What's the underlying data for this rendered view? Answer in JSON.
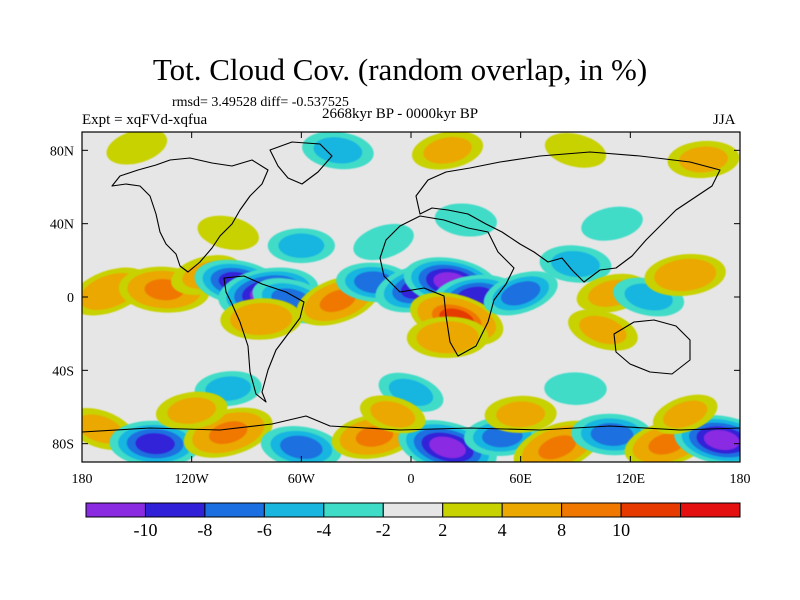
{
  "figure": {
    "title": "Tot. Cloud Cov. (random overlap, in %)",
    "stats_line": "rmsd= 3.49528 diff= -0.537525",
    "period": "2668kyr BP - 0000kyr BP",
    "experiment": "Expt = xqFVd-xqfua",
    "season": "JJA"
  },
  "axes": {
    "lon_ticks": [
      "180",
      "120W",
      "60W",
      "0",
      "60E",
      "120E",
      "180"
    ],
    "lon_values": [
      -180,
      -120,
      -60,
      0,
      60,
      120,
      180
    ],
    "lat_ticks": [
      "80N",
      "40N",
      "0",
      "40S",
      "80S"
    ],
    "lat_values": [
      80,
      40,
      0,
      -40,
      -80
    ],
    "lon_range": [
      -180,
      180
    ],
    "lat_range": [
      -90,
      90
    ]
  },
  "colorbar": {
    "labels": [
      "-10",
      "-8",
      "-6",
      "-4",
      "-2",
      "2",
      "4",
      "8",
      "10"
    ],
    "colors": [
      "#8a2be2",
      "#3020d8",
      "#1b6fe0",
      "#19b6e0",
      "#3fdcc8",
      "#e6e6e6",
      "#c8d200",
      "#eaa800",
      "#f07800",
      "#e63a00",
      "#e41010"
    ]
  },
  "legend_scale": {
    "bins": [
      -12,
      -10,
      -8,
      -6,
      -4,
      -2,
      2,
      4,
      8,
      10,
      12
    ]
  },
  "anomaly_fields": [
    {
      "lon": -165,
      "lat": 3,
      "value": 7
    },
    {
      "lon": -135,
      "lat": 4,
      "value": 9
    },
    {
      "lon": -112,
      "lat": 12,
      "value": 5
    },
    {
      "lon": -95,
      "lat": 8,
      "value": -8
    },
    {
      "lon": -78,
      "lat": 2,
      "value": -11
    },
    {
      "lon": -65,
      "lat": -2,
      "value": -7
    },
    {
      "lon": -82,
      "lat": -12,
      "value": 7
    },
    {
      "lon": -40,
      "lat": -2,
      "value": 8
    },
    {
      "lon": -20,
      "lat": 8,
      "value": -6
    },
    {
      "lon": 5,
      "lat": 5,
      "value": -9
    },
    {
      "lon": 22,
      "lat": 8,
      "value": -10
    },
    {
      "lon": 35,
      "lat": 0,
      "value": -8
    },
    {
      "lon": 25,
      "lat": -12,
      "value": 10
    },
    {
      "lon": 20,
      "lat": -22,
      "value": 7
    },
    {
      "lon": 60,
      "lat": 2,
      "value": -6
    },
    {
      "lon": 90,
      "lat": 18,
      "value": -5
    },
    {
      "lon": 110,
      "lat": 2,
      "value": 5
    },
    {
      "lon": 130,
      "lat": 0,
      "value": -5
    },
    {
      "lon": 150,
      "lat": 12,
      "value": 7
    },
    {
      "lon": 105,
      "lat": -18,
      "value": 5
    },
    {
      "lon": -60,
      "lat": 28,
      "value": -4
    },
    {
      "lon": -15,
      "lat": 30,
      "value": -3
    },
    {
      "lon": 30,
      "lat": 42,
      "value": -3
    },
    {
      "lon": 110,
      "lat": 40,
      "value": -3
    },
    {
      "lon": -100,
      "lat": 35,
      "value": 3
    },
    {
      "lon": -100,
      "lat": -50,
      "value": -4
    },
    {
      "lon": 0,
      "lat": -52,
      "value": -4
    },
    {
      "lon": 90,
      "lat": -50,
      "value": -3
    },
    {
      "lon": -150,
      "lat": 82,
      "value": 3
    },
    {
      "lon": -40,
      "lat": 80,
      "value": -5
    },
    {
      "lon": 20,
      "lat": 80,
      "value": 5
    },
    {
      "lon": 90,
      "lat": 80,
      "value": 3
    },
    {
      "lon": 160,
      "lat": 75,
      "value": 5
    },
    {
      "lon": -170,
      "lat": -72,
      "value": 5
    },
    {
      "lon": -140,
      "lat": -80,
      "value": -9
    },
    {
      "lon": -100,
      "lat": -74,
      "value": 9
    },
    {
      "lon": -60,
      "lat": -82,
      "value": -7
    },
    {
      "lon": -20,
      "lat": -76,
      "value": 8
    },
    {
      "lon": 20,
      "lat": -82,
      "value": -11
    },
    {
      "lon": 50,
      "lat": -76,
      "value": -6
    },
    {
      "lon": 80,
      "lat": -82,
      "value": 9
    },
    {
      "lon": 110,
      "lat": -75,
      "value": -7
    },
    {
      "lon": 140,
      "lat": -80,
      "value": 8
    },
    {
      "lon": 170,
      "lat": -78,
      "value": -10
    },
    {
      "lon": -120,
      "lat": -62,
      "value": 5
    },
    {
      "lon": -10,
      "lat": -64,
      "value": 4
    },
    {
      "lon": 60,
      "lat": -64,
      "value": 5
    },
    {
      "lon": 150,
      "lat": -64,
      "value": 4
    }
  ]
}
